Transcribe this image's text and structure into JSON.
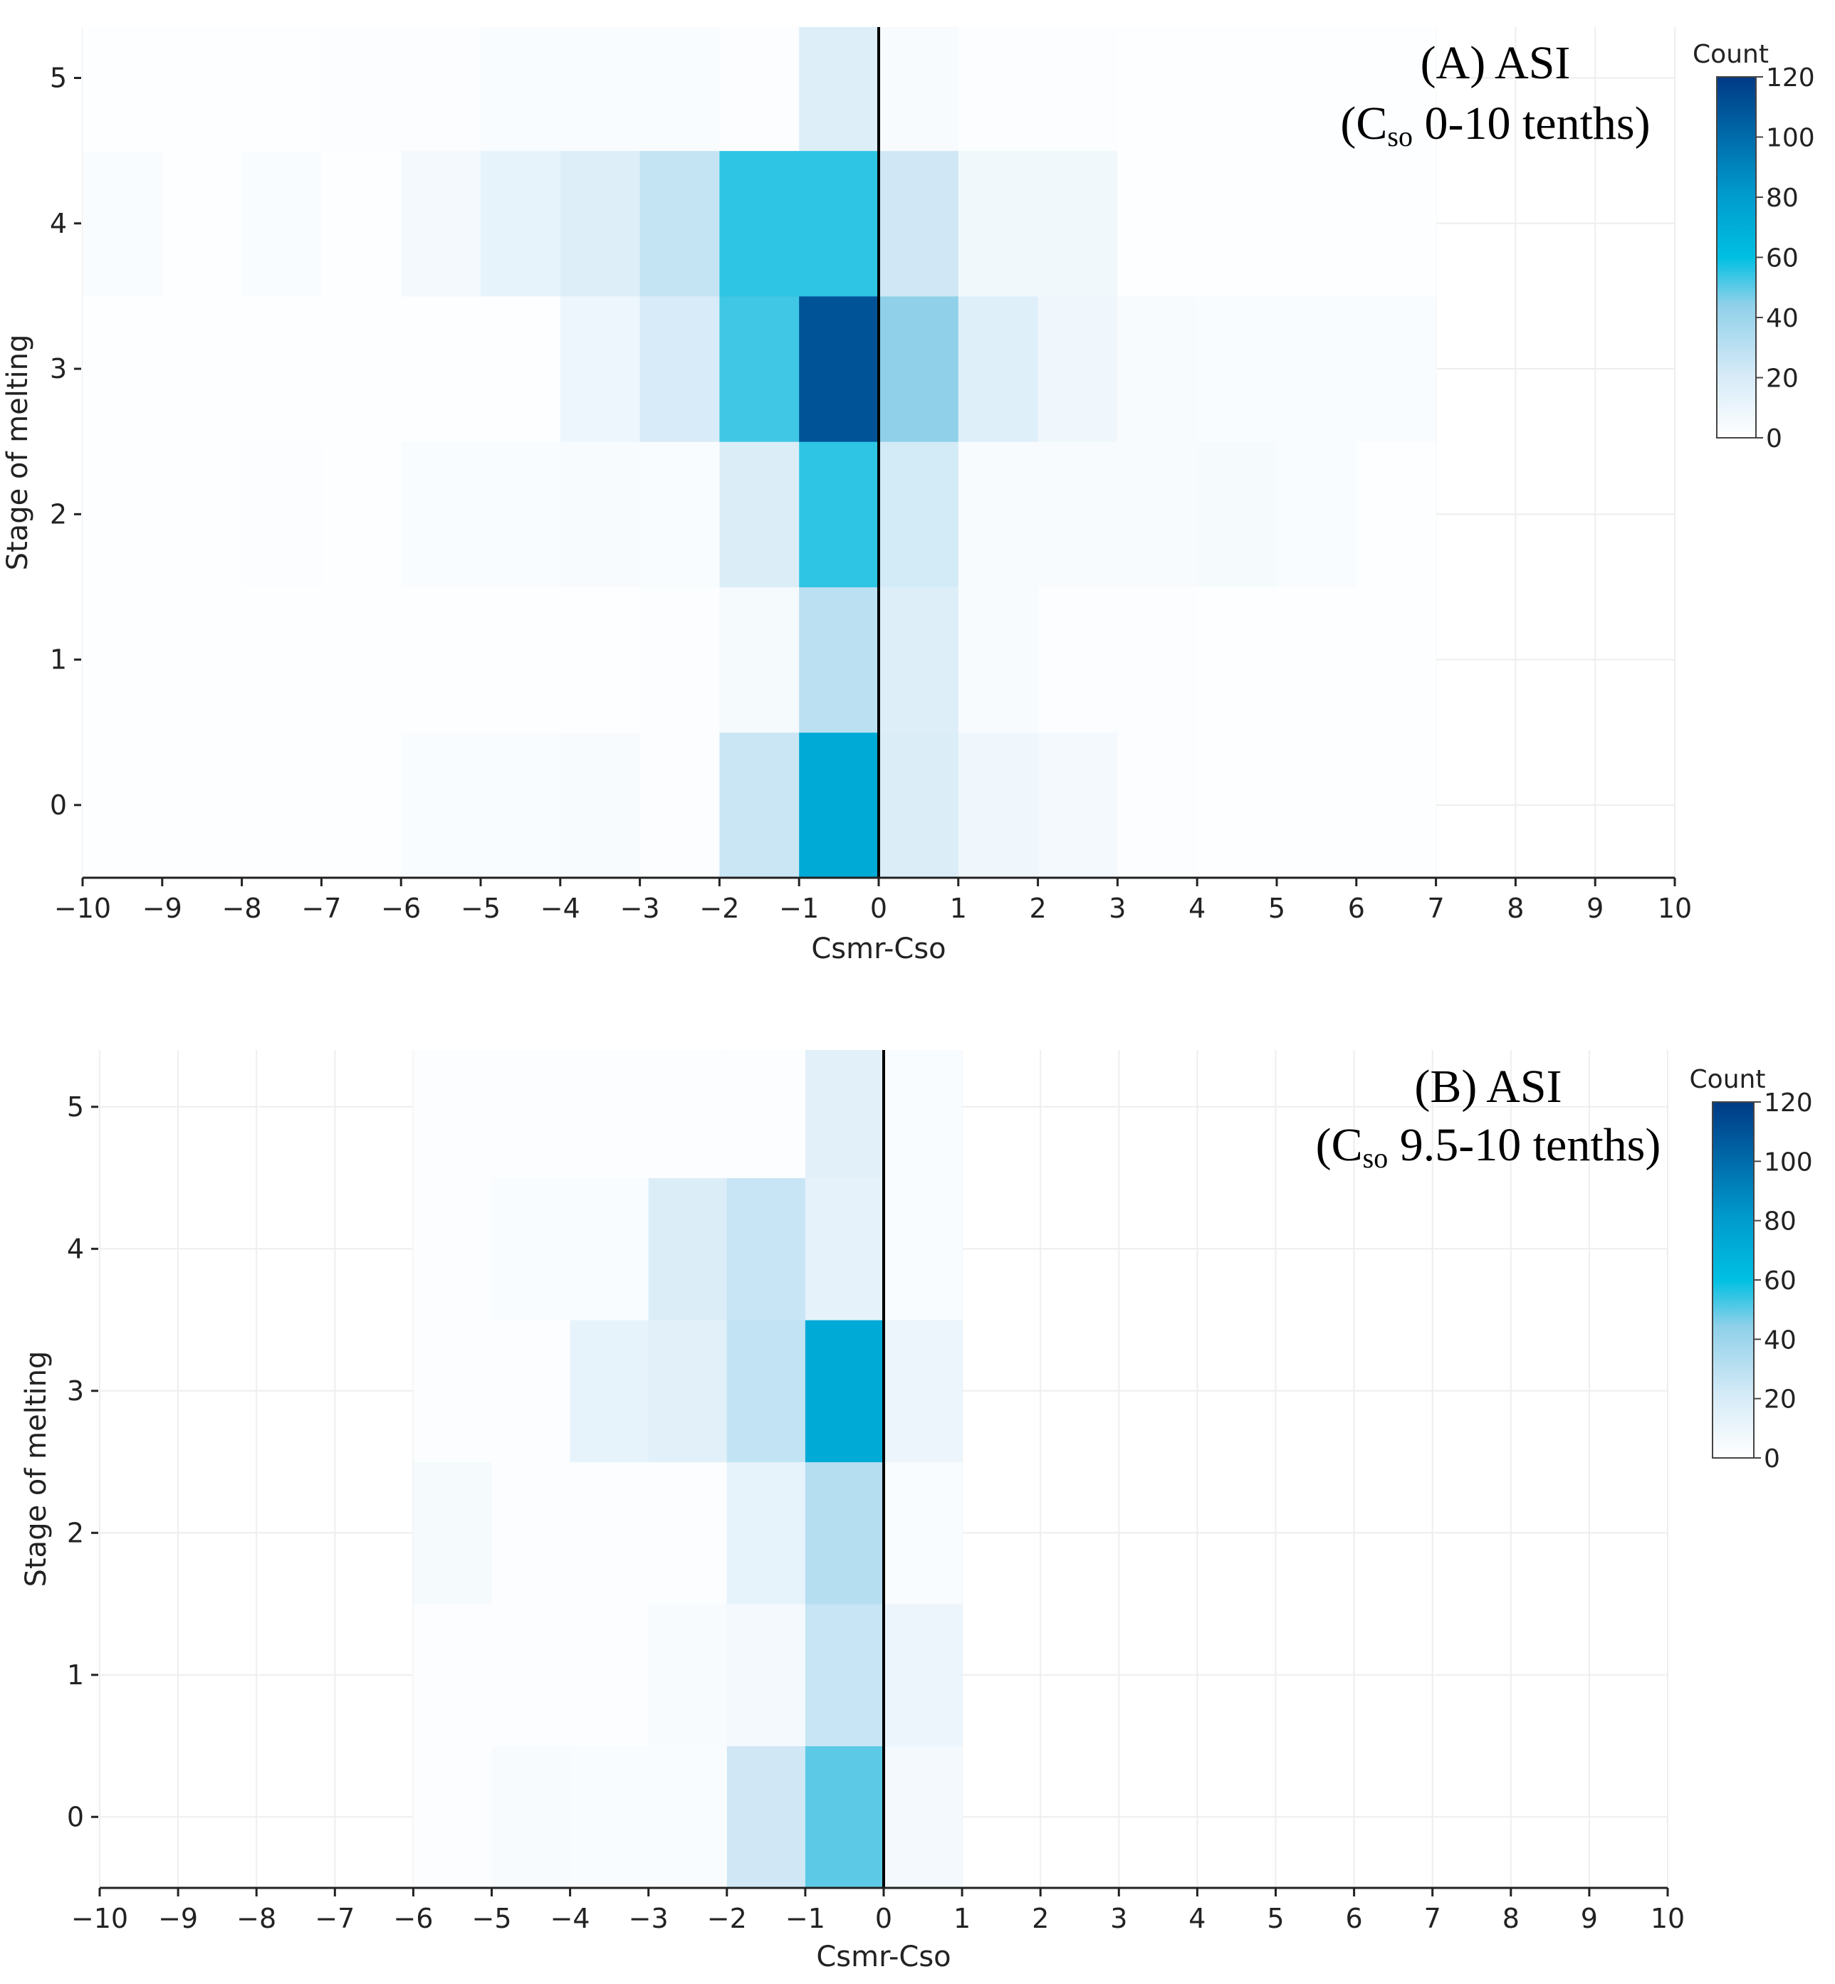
{
  "colors": {
    "axis": "#222222",
    "grid": "#eeeeee",
    "zero_line": "#000000",
    "background_bin": "#f5f9fd",
    "colorscale": [
      [
        0.0,
        "#ffffff"
      ],
      [
        0.18,
        "#d4eaf7"
      ],
      [
        0.37,
        "#8fd0e9"
      ],
      [
        0.5,
        "#00c0e2"
      ],
      [
        0.68,
        "#0099cc"
      ],
      [
        1.0,
        "#003a85"
      ]
    ]
  },
  "chart_data": [
    {
      "type": "heatmap",
      "panel_label": "(A)  ASI",
      "panel_sublabel_prefix": "(C",
      "panel_sublabel_sub": "so",
      "panel_sublabel_suffix": " 0-10 tenths)",
      "xlabel": "Csmr-Cso",
      "ylabel": "Stage of melting",
      "colorbar_title": "Count",
      "colorbar_ticks": [
        "0",
        "20",
        "40",
        "60",
        "80",
        "100",
        "120"
      ],
      "zmin": 0,
      "zmax": 120,
      "xlim": [
        -10,
        10
      ],
      "ylim": [
        -0.5,
        5.35
      ],
      "x_ticks": [
        "−10",
        "−9",
        "−8",
        "−7",
        "−6",
        "−5",
        "−4",
        "−3",
        "−2",
        "−1",
        "0",
        "1",
        "2",
        "3",
        "4",
        "5",
        "6",
        "7",
        "8",
        "9",
        "10"
      ],
      "y_ticks": [
        "0",
        "1",
        "2",
        "3",
        "4",
        "5"
      ],
      "x_bin_edges": [
        -10,
        -9,
        -8,
        -7,
        -6,
        -5,
        -4,
        -3,
        -2,
        -1,
        0,
        1,
        2,
        3,
        4,
        5,
        6,
        7
      ],
      "y_bin_centers": [
        0,
        1,
        2,
        3,
        4,
        5
      ],
      "zero_line": 0,
      "counts": [
        [
          1,
          1,
          1,
          1,
          3,
          3,
          4,
          2,
          25,
          72,
          18,
          8,
          6,
          2,
          1,
          1,
          1
        ],
        [
          1,
          1,
          1,
          1,
          1,
          1,
          1,
          2,
          5,
          30,
          17,
          4,
          2,
          2,
          1,
          1,
          1
        ],
        [
          1,
          1,
          2,
          1,
          3,
          3,
          4,
          3,
          18,
          55,
          22,
          4,
          4,
          4,
          5,
          3,
          1
        ],
        [
          1,
          1,
          1,
          1,
          1,
          1,
          9,
          20,
          53,
          110,
          44,
          16,
          8,
          4,
          3,
          3,
          3
        ],
        [
          3,
          1,
          3,
          1,
          6,
          12,
          17,
          27,
          55,
          55,
          23,
          7,
          7,
          1,
          1,
          1,
          1
        ],
        [
          1,
          1,
          1,
          2,
          2,
          3,
          3,
          3,
          2,
          17,
          4,
          2,
          2,
          1,
          1,
          1,
          1
        ]
      ]
    },
    {
      "type": "heatmap",
      "panel_label": "(B)  ASI",
      "panel_sublabel_prefix": "(C",
      "panel_sublabel_sub": "so",
      "panel_sublabel_suffix": " 9.5-10 tenths)",
      "xlabel": "Csmr-Cso",
      "ylabel": "Stage of melting",
      "colorbar_title": "Count",
      "colorbar_ticks": [
        "0",
        "20",
        "40",
        "60",
        "80",
        "100",
        "120"
      ],
      "zmin": 0,
      "zmax": 120,
      "xlim": [
        -10,
        10
      ],
      "ylim": [
        -0.5,
        5.4
      ],
      "x_ticks": [
        "−10",
        "−9",
        "−8",
        "−7",
        "−6",
        "−5",
        "−4",
        "−3",
        "−2",
        "−1",
        "0",
        "1",
        "2",
        "3",
        "4",
        "5",
        "6",
        "7",
        "8",
        "9",
        "10"
      ],
      "y_ticks": [
        "0",
        "1",
        "2",
        "3",
        "4",
        "5"
      ],
      "x_bin_edges": [
        -6,
        -5,
        -4,
        -3,
        -2,
        -1,
        0,
        1
      ],
      "y_bin_centers": [
        0,
        1,
        2,
        3,
        4,
        5
      ],
      "zero_line": 0,
      "counts": [
        [
          2,
          4,
          3,
          3,
          23,
          50,
          6
        ],
        [
          2,
          2,
          2,
          4,
          6,
          26,
          10
        ],
        [
          5,
          2,
          2,
          2,
          12,
          32,
          3
        ],
        [
          2,
          2,
          12,
          15,
          28,
          72,
          10
        ],
        [
          2,
          3,
          3,
          18,
          26,
          13,
          3
        ],
        [
          2,
          2,
          2,
          2,
          2,
          15,
          3
        ]
      ]
    }
  ]
}
